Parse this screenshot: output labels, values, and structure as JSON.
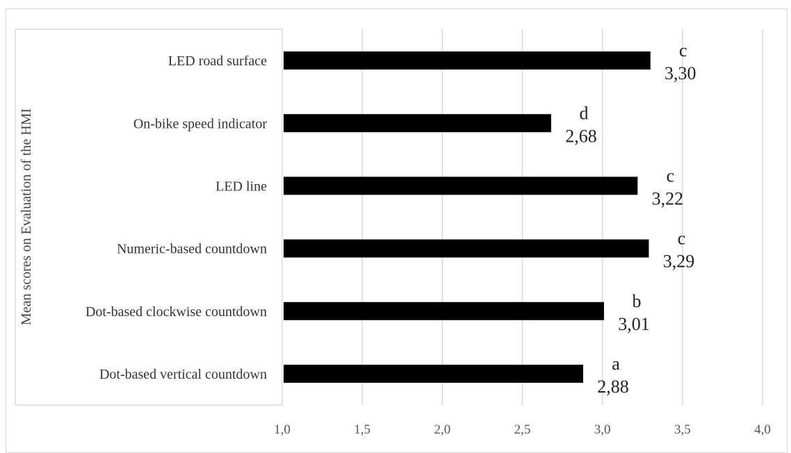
{
  "chart_data": {
    "type": "bar",
    "orientation": "horizontal",
    "title": "",
    "xlabel": "",
    "ylabel": "Mean scores on Evaluation of the HMI",
    "xlim": [
      1.0,
      4.0
    ],
    "xticks": [
      1.0,
      1.5,
      2.0,
      2.5,
      3.0,
      3.5,
      4.0
    ],
    "xtick_labels": [
      "1,0",
      "1,5",
      "2,0",
      "2,5",
      "3,0",
      "3,5",
      "4,0"
    ],
    "categories": [
      "LED road surface",
      "On-bike speed indicator",
      "LED line",
      "Numeric-based countdown",
      "Dot-based clockwise countdown",
      "Dot-based vertical countdown"
    ],
    "values": [
      3.3,
      2.68,
      3.22,
      3.29,
      3.01,
      2.88
    ],
    "value_labels": [
      "3,30",
      "2,68",
      "3,22",
      "3,29",
      "3,01",
      "2,88"
    ],
    "group_letters": [
      "c",
      "d",
      "c",
      "c",
      "b",
      "a"
    ],
    "bar_color": "#000000",
    "grid": "vertical",
    "grid_color": "#d9d9d9",
    "legend": "none"
  }
}
